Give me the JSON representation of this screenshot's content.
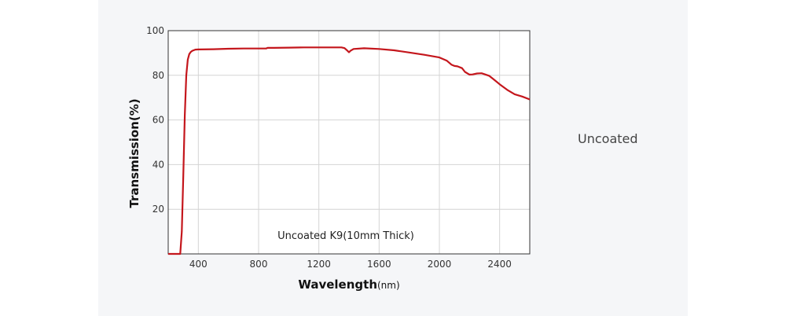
{
  "side_label": "Uncoated",
  "chart_data": {
    "type": "line",
    "title": "",
    "xlabel": "Wavelength",
    "xlabel_unit": "(nm)",
    "ylabel": "Transmission(%)",
    "xlim": [
      200,
      2600
    ],
    "ylim": [
      0,
      100
    ],
    "x_ticks": [
      400,
      800,
      1200,
      1600,
      2000,
      2400
    ],
    "y_ticks": [
      20,
      40,
      60,
      80,
      100
    ],
    "grid": true,
    "annotation": "Uncoated K9(10mm Thick)",
    "line_color": "#c4161c",
    "series": [
      {
        "x": [
          200,
          280,
          290,
          300,
          310,
          320,
          330,
          340,
          350,
          360,
          380,
          400,
          500,
          600,
          700,
          800,
          850,
          860,
          900,
          1000,
          1100,
          1200,
          1300,
          1350,
          1370,
          1390,
          1400,
          1410,
          1430,
          1500,
          1600,
          1700,
          1800,
          1900,
          2000,
          2050,
          2080,
          2100,
          2120,
          2150,
          2170,
          2200,
          2220,
          2250,
          2280,
          2300,
          2330,
          2360,
          2400,
          2450,
          2500,
          2550,
          2600
        ],
        "y": [
          0,
          0,
          10,
          35,
          62,
          80,
          87,
          89.5,
          90.5,
          91,
          91.5,
          91.6,
          91.7,
          91.9,
          92,
          92,
          92,
          92.3,
          92.3,
          92.4,
          92.5,
          92.5,
          92.5,
          92.5,
          92.2,
          91,
          90.3,
          91,
          91.8,
          92.1,
          91.8,
          91.2,
          90.2,
          89.2,
          88,
          86.5,
          84.8,
          84.2,
          84,
          83.2,
          81.5,
          80.3,
          80.4,
          80.8,
          80.9,
          80.5,
          79.8,
          78.2,
          76,
          73.5,
          71.5,
          70.5,
          69.2
        ]
      }
    ]
  }
}
